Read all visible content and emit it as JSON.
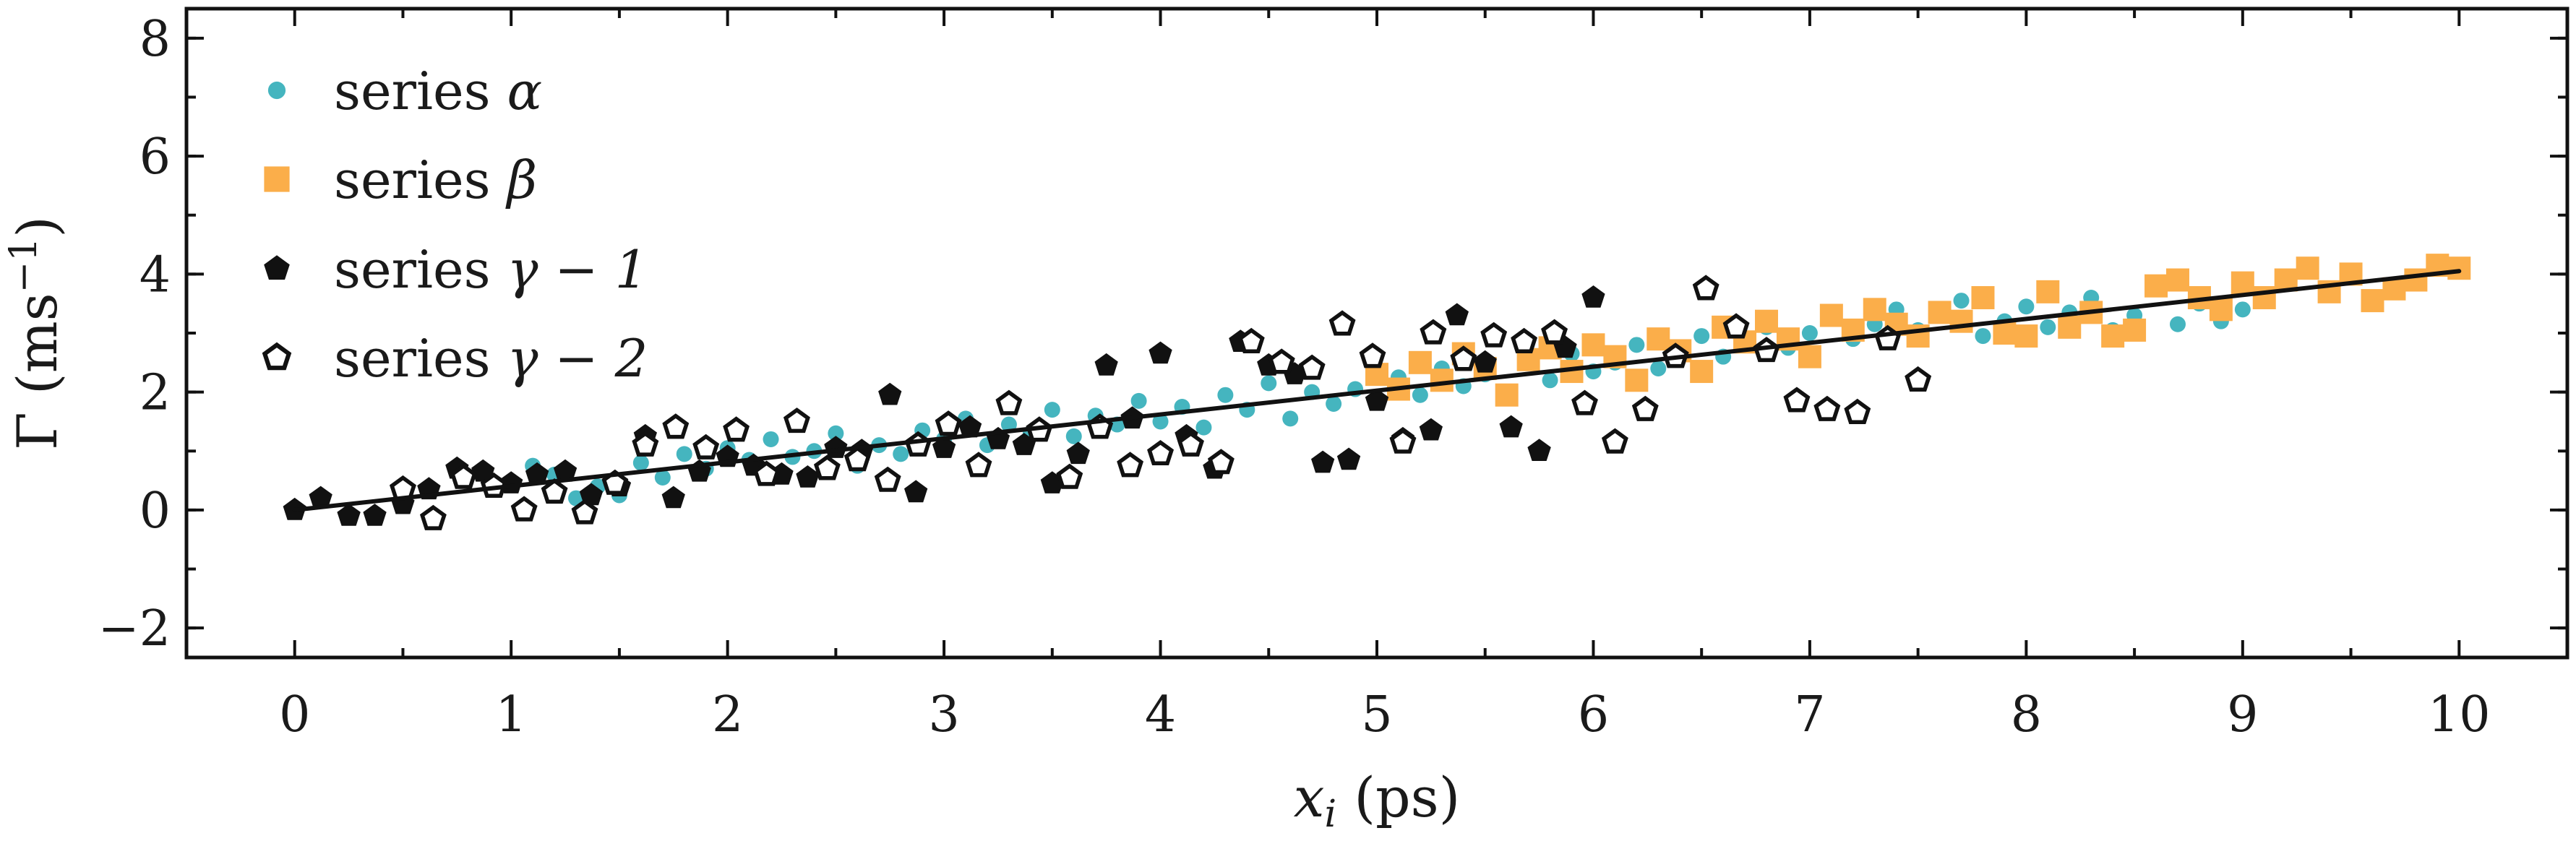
{
  "chart_data": {
    "type": "scatter",
    "xlabel": "x_i (ps)",
    "xlabel_parts": {
      "var": "x",
      "sub": "i",
      "unit": " (ps)"
    },
    "ylabel": "Γ (ms⁻¹)",
    "ylabel_parts": {
      "base": "Γ (ms",
      "sup": "−1",
      "close": ")"
    },
    "xlim": [
      -0.5,
      10.5
    ],
    "ylim": [
      -2.5,
      8.5
    ],
    "xticks": [
      0,
      1,
      2,
      3,
      4,
      5,
      6,
      7,
      8,
      9,
      10
    ],
    "xtick_labels": [
      "0",
      "1",
      "2",
      "3",
      "4",
      "5",
      "6",
      "7",
      "8",
      "9",
      "10"
    ],
    "yticks": [
      -2,
      0,
      2,
      4,
      6,
      8
    ],
    "ytick_labels": [
      "−2",
      "0",
      "2",
      "4",
      "6",
      "8"
    ],
    "grid": false,
    "legend_position": "top-left",
    "colors": {
      "alpha": "#45b5bf",
      "beta": "#fbae4a",
      "gamma": "#111111",
      "fit": "#111111"
    },
    "series": [
      {
        "name": "series α",
        "label_parts": {
          "text": "series ",
          "math": "α"
        },
        "marker": "circle",
        "color": "#45b5bf",
        "x": [
          1.0,
          1.1,
          1.2,
          1.3,
          1.4,
          1.5,
          1.6,
          1.7,
          1.8,
          1.9,
          2.0,
          2.1,
          2.2,
          2.3,
          2.4,
          2.5,
          2.6,
          2.7,
          2.8,
          2.9,
          3.0,
          3.1,
          3.2,
          3.3,
          3.4,
          3.5,
          3.6,
          3.7,
          3.8,
          3.9,
          4.0,
          4.1,
          4.2,
          4.3,
          4.4,
          4.5,
          4.6,
          4.7,
          4.8,
          4.9,
          5.0,
          5.1,
          5.2,
          5.3,
          5.4,
          5.5,
          5.6,
          5.7,
          5.8,
          5.9,
          6.0,
          6.1,
          6.2,
          6.3,
          6.4,
          6.5,
          6.6,
          6.7,
          6.8,
          6.9,
          7.0,
          7.1,
          7.2,
          7.3,
          7.4,
          7.5,
          7.6,
          7.7,
          7.8,
          7.9,
          8.0,
          8.1,
          8.2,
          8.3,
          8.4,
          8.5,
          8.6,
          8.7,
          8.8,
          8.9,
          9.0
        ],
        "y": [
          0.45,
          0.75,
          0.6,
          0.2,
          0.4,
          0.25,
          0.8,
          0.55,
          0.95,
          0.7,
          1.05,
          0.85,
          1.2,
          0.9,
          1.0,
          1.3,
          0.75,
          1.1,
          0.95,
          1.35,
          1.2,
          1.55,
          1.1,
          1.45,
          1.3,
          1.7,
          1.25,
          1.6,
          1.45,
          1.85,
          1.5,
          1.75,
          1.4,
          1.95,
          1.7,
          2.15,
          1.55,
          2.0,
          1.8,
          2.05,
          1.85,
          2.25,
          1.95,
          2.4,
          2.1,
          2.3,
          1.9,
          2.5,
          2.2,
          2.65,
          2.35,
          2.5,
          2.8,
          2.4,
          2.7,
          2.95,
          2.6,
          2.85,
          3.1,
          2.75,
          3.0,
          3.25,
          2.9,
          3.15,
          3.4,
          3.05,
          3.3,
          3.55,
          2.95,
          3.2,
          3.45,
          3.1,
          3.35,
          3.6,
          3.05,
          3.3,
          3.75,
          3.15,
          3.5,
          3.2,
          3.4
        ]
      },
      {
        "name": "series β",
        "label_parts": {
          "text": "series ",
          "math": "β"
        },
        "marker": "square",
        "color": "#fbae4a",
        "x": [
          5.0,
          5.1,
          5.2,
          5.3,
          5.4,
          5.5,
          5.6,
          5.7,
          5.8,
          5.9,
          6.0,
          6.1,
          6.2,
          6.3,
          6.4,
          6.5,
          6.6,
          6.7,
          6.8,
          6.9,
          7.0,
          7.1,
          7.2,
          7.3,
          7.4,
          7.5,
          7.6,
          7.7,
          7.8,
          7.9,
          8.0,
          8.1,
          8.2,
          8.3,
          8.4,
          8.5,
          8.6,
          8.7,
          8.8,
          8.9,
          9.0,
          9.1,
          9.2,
          9.3,
          9.4,
          9.5,
          9.6,
          9.7,
          9.8,
          9.9,
          10.0
        ],
        "y": [
          2.3,
          2.05,
          2.5,
          2.2,
          2.65,
          2.4,
          1.95,
          2.55,
          2.75,
          2.35,
          2.8,
          2.6,
          2.2,
          2.9,
          2.7,
          2.35,
          3.1,
          2.85,
          3.2,
          2.9,
          2.6,
          3.3,
          3.05,
          3.4,
          3.15,
          2.95,
          3.35,
          3.2,
          3.6,
          3.0,
          2.95,
          3.7,
          3.1,
          3.35,
          2.95,
          3.05,
          3.8,
          3.9,
          3.6,
          3.4,
          3.85,
          3.6,
          3.9,
          4.1,
          3.7,
          4.0,
          3.55,
          3.75,
          3.9,
          4.15,
          4.1
        ]
      },
      {
        "name": "series γ − 1",
        "label_parts": {
          "text": "series ",
          "math": "γ − 1"
        },
        "marker": "pentagon-filled",
        "color": "#111111",
        "x": [
          0.0,
          0.12,
          0.25,
          0.37,
          0.5,
          0.62,
          0.75,
          0.87,
          1.0,
          1.12,
          1.25,
          1.37,
          1.5,
          1.62,
          1.75,
          1.87,
          2.0,
          2.12,
          2.25,
          2.37,
          2.5,
          2.62,
          2.75,
          2.87,
          3.0,
          3.12,
          3.25,
          3.37,
          3.5,
          3.62,
          3.75,
          3.87,
          4.0,
          4.12,
          4.25,
          4.37,
          4.5,
          4.62,
          4.75,
          4.87,
          5.0,
          5.12,
          5.25,
          5.37,
          5.5,
          5.62,
          5.75,
          5.87,
          6.0
        ],
        "y": [
          0.0,
          0.2,
          -0.1,
          -0.1,
          0.1,
          0.35,
          0.7,
          0.65,
          0.45,
          0.6,
          0.65,
          0.25,
          0.4,
          1.25,
          0.2,
          0.65,
          0.9,
          0.75,
          0.6,
          0.55,
          1.05,
          1.0,
          1.95,
          0.3,
          1.05,
          1.4,
          1.2,
          1.1,
          0.45,
          0.95,
          2.45,
          1.55,
          2.65,
          1.25,
          0.7,
          2.85,
          2.45,
          2.3,
          0.8,
          0.85,
          1.85,
          1.2,
          1.35,
          3.3,
          2.5,
          1.4,
          1.0,
          2.75,
          3.6
        ]
      },
      {
        "name": "series γ − 2",
        "label_parts": {
          "text": "series ",
          "math": "γ − 2"
        },
        "marker": "pentagon-open",
        "color": "#111111",
        "x": [
          0.5,
          0.64,
          0.78,
          0.92,
          1.06,
          1.2,
          1.34,
          1.48,
          1.62,
          1.76,
          1.9,
          2.04,
          2.18,
          2.32,
          2.46,
          2.6,
          2.74,
          2.88,
          3.02,
          3.16,
          3.3,
          3.44,
          3.58,
          3.72,
          3.86,
          4.0,
          4.14,
          4.28,
          4.42,
          4.56,
          4.7,
          4.84,
          4.98,
          5.12,
          5.26,
          5.4,
          5.54,
          5.68,
          5.82,
          5.96,
          6.1,
          6.24,
          6.38,
          6.52,
          6.66,
          6.8,
          6.94,
          7.08,
          7.22,
          7.36,
          7.5
        ],
        "y": [
          0.35,
          -0.15,
          0.55,
          0.4,
          0.0,
          0.3,
          -0.05,
          0.45,
          1.1,
          1.4,
          1.05,
          1.35,
          0.6,
          1.5,
          0.7,
          0.85,
          0.5,
          1.1,
          1.45,
          0.75,
          1.8,
          1.35,
          0.55,
          1.4,
          0.75,
          0.95,
          1.1,
          0.8,
          2.85,
          2.5,
          2.4,
          3.15,
          2.6,
          1.15,
          3.0,
          2.55,
          2.95,
          2.85,
          3.0,
          1.8,
          1.15,
          1.7,
          2.6,
          3.75,
          3.1,
          2.7,
          1.85,
          1.7,
          1.65,
          2.9,
          2.2
        ]
      }
    ],
    "fit_line": {
      "x": [
        0,
        10
      ],
      "y": [
        0.0,
        4.05
      ]
    }
  }
}
